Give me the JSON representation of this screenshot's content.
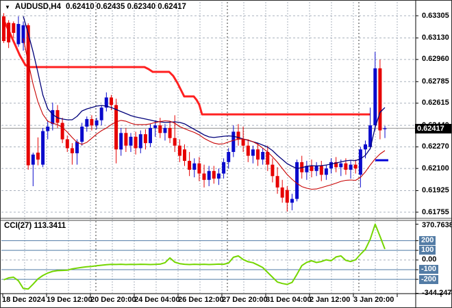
{
  "window": {
    "symbol_period": "AUDUSD,H4",
    "ohlc_text": "0.62410 0.62435 0.62340 0.62417"
  },
  "indicator": {
    "label": "CCI(27) 113.3411",
    "name": "CCI",
    "period": "27",
    "current_value": "113.3411"
  },
  "main_axis": {
    "price_badge": "0.62417",
    "tick_labels": [
      "0.63305",
      "0.63130",
      "0.62960",
      "0.62785",
      "0.62615",
      "0.62440",
      "0.62270",
      "0.62100",
      "0.61925",
      "0.61755"
    ]
  },
  "cci_axis": {
    "scale_labels": [
      {
        "text": "370.7638",
        "value": 370.7638,
        "badge": false
      },
      {
        "text": "200",
        "value": 200,
        "badge": true
      },
      {
        "text": "100",
        "value": 100,
        "badge": true
      },
      {
        "text": "0.00",
        "value": 0,
        "badge": false
      },
      {
        "text": "-100",
        "value": -100,
        "badge": true
      },
      {
        "text": "-200",
        "value": -200,
        "badge": true
      },
      {
        "text": "-344.2471",
        "value": -344.2471,
        "badge": false
      }
    ]
  },
  "time_axis": {
    "labels": [
      "18 Dec 2024",
      "19 Dec 12:00",
      "20 Dec 20:00",
      "24 Dec 04:00",
      "26 Dec 12:00",
      "27 Dec 20:00",
      "31 Dec 04:00",
      "2 Jan 12:00",
      "3 Jan 20:00"
    ]
  },
  "colors": {
    "bull": "#0a0acc",
    "bear": "#e60000",
    "grid": "#a8b0bc",
    "separator": "#3a3a3a",
    "ma_slow": "#00007a",
    "ma_fast": "#c80000",
    "resistance": "#ff2020",
    "support": "#0000d8",
    "price_line": "#909090",
    "level_line": "#4f7aa5",
    "cci_line": "#74d600",
    "badge_bg": "#000000",
    "badge_fg": "#ffffff",
    "level_badge_bg": "#537ca5",
    "border": "#000000"
  },
  "chart_data": [
    {
      "type": "candlestick",
      "symbol": "AUDUSD",
      "timeframe": "H4",
      "ohlc_current": {
        "open": 0.6241,
        "high": 0.62435,
        "low": 0.6234,
        "close": 0.62417
      },
      "current_price_line": 0.62417,
      "ylim": [
        0.61755,
        0.63305
      ],
      "y_ticks": [
        0.63305,
        0.6313,
        0.6296,
        0.62785,
        0.62615,
        0.6244,
        0.6227,
        0.621,
        0.61925,
        0.61755
      ],
      "price_scale": 100000,
      "candles": [
        [
          63300,
          63325,
          63090,
          63105
        ],
        [
          63250,
          63270,
          63050,
          63095
        ],
        [
          63246,
          63260,
          63130,
          63170
        ],
        [
          63080,
          63300,
          63060,
          63240
        ],
        [
          63090,
          63260,
          63030,
          63230
        ],
        [
          63230,
          63245,
          62090,
          62125
        ],
        [
          62130,
          62225,
          61960,
          62210
        ],
        [
          62225,
          62345,
          62125,
          62170
        ],
        [
          62130,
          62420,
          62110,
          62395
        ],
        [
          62395,
          62480,
          62330,
          62430
        ],
        [
          62450,
          62620,
          62400,
          62560
        ],
        [
          62560,
          62600,
          62420,
          62460
        ],
        [
          62460,
          62500,
          62300,
          62330
        ],
        [
          62330,
          62360,
          62230,
          62260
        ],
        [
          62260,
          62300,
          62130,
          62220
        ],
        [
          62220,
          62330,
          62130,
          62310
        ],
        [
          62310,
          62460,
          62280,
          62430
        ],
        [
          62430,
          62510,
          62390,
          62490
        ],
        [
          62490,
          62520,
          62400,
          62440
        ],
        [
          62440,
          62500,
          62410,
          62480
        ],
        [
          62480,
          62600,
          62440,
          62580
        ],
        [
          62580,
          62700,
          62550,
          62660
        ],
        [
          62660,
          62680,
          62560,
          62600
        ],
        [
          62600,
          62650,
          62140,
          62250
        ],
        [
          62250,
          62420,
          62200,
          62380
        ],
        [
          62380,
          62420,
          62230,
          62280
        ],
        [
          62280,
          62380,
          62230,
          62350
        ],
        [
          62350,
          62390,
          62210,
          62260
        ],
        [
          62260,
          62400,
          62220,
          62370
        ],
        [
          62370,
          62410,
          62250,
          62300
        ],
        [
          62300,
          62450,
          62270,
          62420
        ],
        [
          62420,
          62480,
          62350,
          62440
        ],
        [
          62440,
          62500,
          62340,
          62380
        ],
        [
          62380,
          62450,
          62320,
          62420
        ],
        [
          62420,
          62470,
          62300,
          62340
        ],
        [
          62340,
          62520,
          62230,
          62280
        ],
        [
          62280,
          62330,
          62150,
          62200
        ],
        [
          62250,
          62290,
          62120,
          62160
        ],
        [
          62160,
          62230,
          62040,
          62090
        ],
        [
          62090,
          62180,
          62030,
          62140
        ],
        [
          62140,
          62190,
          62000,
          62060
        ],
        [
          62060,
          62130,
          61950,
          62010
        ],
        [
          62010,
          62120,
          61960,
          62080
        ],
        [
          62080,
          62120,
          61980,
          62020
        ],
        [
          62020,
          62100,
          61970,
          62060
        ],
        [
          62060,
          62180,
          62020,
          62150
        ],
        [
          62150,
          62260,
          62100,
          62230
        ],
        [
          62230,
          62440,
          62190,
          62390
        ],
        [
          62390,
          62450,
          62280,
          62330
        ],
        [
          62330,
          62430,
          62230,
          62280
        ],
        [
          62280,
          62330,
          62150,
          62200
        ],
        [
          62200,
          62280,
          62140,
          62250
        ],
        [
          62250,
          62300,
          62120,
          62170
        ],
        [
          62170,
          62260,
          62130,
          62230
        ],
        [
          62230,
          62280,
          62080,
          62130
        ],
        [
          62130,
          62180,
          61990,
          62040
        ],
        [
          62040,
          62110,
          61900,
          61950
        ],
        [
          61950,
          62010,
          61830,
          61870
        ],
        [
          61930,
          61960,
          61760,
          61830
        ],
        [
          61830,
          61900,
          61770,
          61860
        ],
        [
          61860,
          62170,
          61840,
          62150
        ],
        [
          62150,
          62200,
          62020,
          62070
        ],
        [
          62070,
          62160,
          62010,
          62120
        ],
        [
          62120,
          62170,
          62030,
          62080
        ],
        [
          62080,
          62150,
          62040,
          62120
        ],
        [
          62120,
          62160,
          62000,
          62050
        ],
        [
          62050,
          62130,
          62010,
          62100
        ],
        [
          62100,
          62180,
          62060,
          62150
        ],
        [
          62150,
          62190,
          62070,
          62110
        ],
        [
          62110,
          62170,
          62040,
          62140
        ],
        [
          62140,
          62180,
          62050,
          62090
        ],
        [
          62090,
          62160,
          62020,
          62130
        ],
        [
          62130,
          62170,
          62060,
          62100
        ],
        [
          62050,
          62270,
          61950,
          62250
        ],
        [
          62250,
          62320,
          62180,
          62290
        ],
        [
          62270,
          62580,
          62250,
          62440
        ],
        [
          62440,
          63020,
          62400,
          62890
        ],
        [
          62890,
          62960,
          62330,
          62400
        ],
        [
          62410,
          62435,
          62340,
          62417
        ]
      ],
      "ma_slow": {
        "start_index": 4,
        "values": [
          63300,
          63165,
          63020,
          62857,
          62679,
          62571,
          62527,
          62500,
          62490,
          62484,
          62484,
          62511,
          62554,
          62570,
          62581,
          62592,
          62597,
          62592,
          62581,
          62565,
          62549,
          62533,
          62517,
          62506,
          62498,
          62490,
          62482,
          62473,
          62468,
          62463,
          62465,
          62468,
          62463,
          62452,
          62430,
          62408,
          62387,
          62365,
          62349,
          62344,
          62349,
          62354,
          62357,
          62354,
          62344,
          62333,
          62322,
          62311,
          62300,
          62284,
          62268,
          62241,
          62203,
          62171,
          62138,
          62117,
          62100,
          62106,
          62117,
          62122,
          62120,
          62122,
          62127,
          62135,
          62143,
          62152,
          62160,
          62165,
          62162,
          62176,
          62203,
          62257,
          62425,
          62543,
          62581
        ]
      },
      "ma_fast": {
        "start_index": 4,
        "values": [
          63127,
          62938,
          62765,
          62625,
          62527,
          62473,
          62457,
          62446,
          62424,
          62387,
          62344,
          62306,
          62290,
          62306,
          62338,
          62371,
          62398,
          62419,
          62446,
          62468,
          62479,
          62473,
          62457,
          62446,
          62446,
          62446,
          62452,
          62463,
          62470,
          62476,
          62473,
          62457,
          62430,
          62414,
          62398,
          62384,
          62365,
          62338,
          62317,
          62300,
          62292,
          62295,
          62309,
          62322,
          62330,
          62333,
          62325,
          62311,
          62290,
          62260,
          62230,
          62192,
          62149,
          62100,
          62052,
          62014,
          61982,
          61957,
          61944,
          61936,
          61938,
          61949,
          61960,
          61971,
          61984,
          61998,
          62006,
          62009,
          62006,
          62030,
          62073,
          62127,
          62176,
          62214,
          62241
        ]
      },
      "resistance_line": [
        [
          4,
          63273
        ],
        [
          12,
          63186
        ],
        [
          20,
          63089
        ],
        [
          28,
          62992
        ],
        [
          36,
          62916
        ],
        [
          42,
          62900
        ],
        [
          210,
          62900
        ],
        [
          216,
          62884
        ],
        [
          222,
          62862
        ],
        [
          246,
          62862
        ],
        [
          252,
          62830
        ],
        [
          258,
          62776
        ],
        [
          264,
          62711
        ],
        [
          268,
          62668
        ],
        [
          282,
          62668
        ],
        [
          286,
          62641
        ],
        [
          290,
          62603
        ],
        [
          294,
          62527
        ],
        [
          540,
          62527
        ]
      ],
      "support_segment": {
        "x1": 547,
        "x2": 566,
        "price_scaled": 62165
      }
    },
    {
      "type": "line",
      "name": "CCI",
      "params": "27",
      "current_value": 113.3411,
      "ylim": [
        -344.2471,
        370.7638
      ],
      "levels": [
        200,
        100,
        -100,
        -200
      ],
      "zero_level": 0,
      "values": [
        -205,
        -185,
        -178,
        -215,
        -295,
        -300,
        -250,
        -195,
        -160,
        -135,
        -118,
        -110,
        -108,
        -105,
        -92,
        -84,
        -76,
        -70,
        -66,
        -60,
        -54,
        -48,
        -45,
        -46,
        -44,
        -47,
        -45,
        -46,
        -44,
        -45,
        -47,
        -45,
        -43,
        -28,
        22,
        -22,
        -38,
        -44,
        -47,
        -44,
        -46,
        -44,
        -47,
        -45,
        -43,
        -44,
        -32,
        28,
        42,
        5,
        -18,
        -28,
        -52,
        -78,
        -128,
        -178,
        -228,
        -243,
        -252,
        -232,
        -148,
        -58,
        -24,
        -8,
        -26,
        -16,
        2,
        -8,
        32,
        42,
        -4,
        -16,
        2,
        60,
        110,
        215,
        370.7638,
        245,
        113.3411
      ]
    }
  ]
}
